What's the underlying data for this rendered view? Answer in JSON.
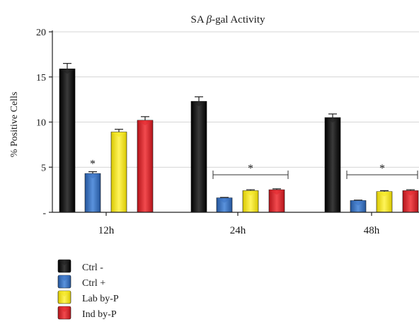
{
  "chart_data": {
    "type": "bar",
    "title_prefix": "SA ",
    "title_symbol": "β",
    "title_suffix": "-gal Activity",
    "ylabel": "% Positive Cells",
    "xlabel": "",
    "ylim": [
      0,
      20
    ],
    "y_ticks": [
      {
        "value": 0,
        "label": "-"
      },
      {
        "value": 5,
        "label": "5"
      },
      {
        "value": 10,
        "label": "10"
      },
      {
        "value": 15,
        "label": "15"
      },
      {
        "value": 20,
        "label": "20"
      }
    ],
    "grid": true,
    "legend_position": "bottom-left",
    "categories": [
      "12h",
      "24h",
      "48h"
    ],
    "series": [
      {
        "name": "Ctrl -",
        "color": "#1f1f1f",
        "values": [
          15.9,
          12.3,
          10.5
        ],
        "errors": [
          0.6,
          0.5,
          0.4
        ]
      },
      {
        "name": "Ctrl +",
        "color": "#3a73c4",
        "values": [
          4.3,
          1.6,
          1.3
        ],
        "errors": [
          0.2,
          0.05,
          0.05
        ]
      },
      {
        "name": "Lab by-P",
        "color": "#f2e51a",
        "values": [
          8.9,
          2.4,
          2.3
        ],
        "errors": [
          0.3,
          0.1,
          0.1
        ]
      },
      {
        "name": "Ind by-P",
        "color": "#e3262b",
        "values": [
          10.2,
          2.5,
          2.4
        ],
        "errors": [
          0.4,
          0.1,
          0.1
        ]
      }
    ],
    "annotations": [
      {
        "type": "star",
        "label": "*",
        "category": 0,
        "series": 1
      },
      {
        "type": "bracket",
        "label": "*",
        "category": 1
      },
      {
        "type": "bracket",
        "label": "*",
        "category": 2
      }
    ]
  }
}
